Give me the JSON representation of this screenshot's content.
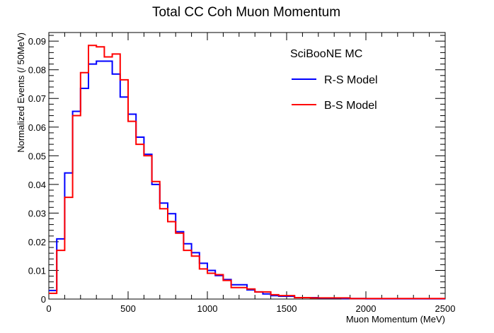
{
  "chart_data": {
    "type": "line",
    "title": "Total CC Coh Muon Momentum",
    "xlabel": "Muon Momentum (MeV)",
    "ylabel": "Normalized Events (/ 50MeV)",
    "xlim": [
      0,
      2500
    ],
    "ylim": [
      0,
      0.093
    ],
    "bin_width": 50,
    "x_ticks": [
      0,
      500,
      1000,
      1500,
      2000,
      2500
    ],
    "y_ticks": [
      0,
      0.01,
      0.02,
      0.03,
      0.04,
      0.05,
      0.06,
      0.07,
      0.08,
      0.09
    ],
    "y_tick_labels": [
      "0",
      "0.01",
      "0.02",
      "0.03",
      "0.04",
      "0.05",
      "0.06",
      "0.07",
      "0.08",
      "0.09"
    ],
    "grid": false,
    "legend": {
      "header": "SciBooNE MC",
      "placement": "top-right"
    },
    "series": [
      {
        "name": "R-S Model",
        "color": "#0000ff",
        "values": [
          0.003,
          0.021,
          0.044,
          0.0655,
          0.0735,
          0.082,
          0.083,
          0.083,
          0.0785,
          0.0705,
          0.0645,
          0.0565,
          0.0505,
          0.04,
          0.0335,
          0.0298,
          0.0235,
          0.0193,
          0.0162,
          0.0125,
          0.01,
          0.0082,
          0.0068,
          0.005,
          0.005,
          0.0032,
          0.0025,
          0.0018,
          0.0012,
          0.001,
          0.001,
          0.0005,
          0.0005,
          0.0005,
          0.0003,
          0.0003,
          0.0003,
          0.0002,
          0.0002,
          0.0002,
          0.0001,
          0.0001,
          0.0001,
          0.0001,
          0.0001,
          0.0001,
          0.0001,
          0.0001,
          0.0001,
          0.0001
        ]
      },
      {
        "name": "B-S Model",
        "color": "#ff0000",
        "values": [
          0.002,
          0.017,
          0.0355,
          0.064,
          0.079,
          0.0885,
          0.088,
          0.0845,
          0.0855,
          0.0765,
          0.062,
          0.054,
          0.05,
          0.041,
          0.0315,
          0.027,
          0.023,
          0.017,
          0.015,
          0.0105,
          0.009,
          0.0085,
          0.0065,
          0.004,
          0.004,
          0.0035,
          0.0025,
          0.0025,
          0.0015,
          0.0012,
          0.0012,
          0.0005,
          0.0005,
          0.0004,
          0.0004,
          0.0004,
          0.0004,
          0.0004,
          0.0002,
          0.0002,
          0.0002,
          0.0002,
          0.0002,
          0.0002,
          0.0002,
          0.0002,
          0.0002,
          0.0002,
          0.0002,
          0.0002
        ]
      }
    ]
  }
}
